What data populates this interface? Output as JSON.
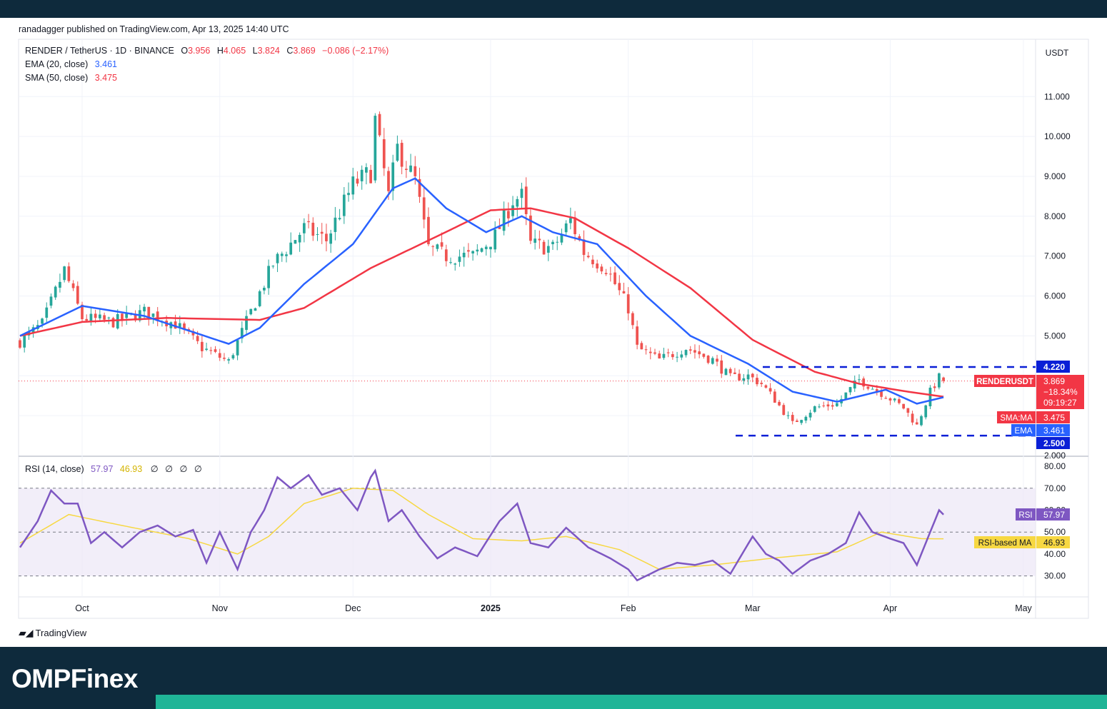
{
  "header": {
    "published": "ranadagger published on TradingView.com, Apr 13, 2025 14:40 UTC"
  },
  "footer": {
    "tradingview": "TradingView",
    "brand": "OMPFinex"
  },
  "legend": {
    "symbol": "RENDER / TetherUS · 1D · BINANCE",
    "o_label": "O",
    "o_val": "3.956",
    "h_label": "H",
    "h_val": "4.065",
    "l_label": "L",
    "l_val": "3.824",
    "c_label": "C",
    "c_val": "3.869",
    "change": "−0.086 (−2.17%)",
    "ema_label": "EMA (20, close)",
    "ema_val": "3.461",
    "sma_label": "SMA (50, close)",
    "sma_val": "3.475",
    "rsi_label": "RSI (14, close)",
    "rsi_val": "57.97",
    "rsi_ma_val": "46.93",
    "rsi_extra": [
      "∅",
      "∅",
      "∅",
      "∅"
    ]
  },
  "price_axis": {
    "currency": "USDT",
    "ticks": [
      "11.000",
      "10.000",
      "9.000",
      "8.000",
      "7.000",
      "6.000",
      "5.000",
      "2.000"
    ],
    "tick_values": [
      11,
      10,
      9,
      8,
      7,
      6,
      5,
      2
    ]
  },
  "rsi_axis": {
    "ticks": [
      "80.00",
      "70.00",
      "60.00",
      "50.00",
      "40.00",
      "30.00"
    ],
    "tick_values": [
      80,
      70,
      60,
      50,
      40,
      30
    ]
  },
  "time_axis": {
    "labels": [
      "Oct",
      "Nov",
      "Dec",
      "2025",
      "Feb",
      "Mar",
      "Apr",
      "May"
    ],
    "dates": [
      "2024-10-01",
      "2024-11-01",
      "2024-12-01",
      "2025-01-01",
      "2025-02-01",
      "2025-03-01",
      "2025-04-01",
      "2025-05-01"
    ]
  },
  "badges": {
    "resistance": "4.220",
    "support": "2.500",
    "symbol_tag": "RENDERUSDT",
    "last_price": "3.869",
    "last_change": "−18.34%",
    "countdown": "09:19:27",
    "sma_tag": "SMA:MA",
    "sma_val": "3.475",
    "ema_tag": "EMA",
    "ema_val": "3.461",
    "rsi_tag": "RSI",
    "rsi_val": "57.97",
    "rsi_ma_tag": "RSI-based MA",
    "rsi_ma_val": "46.93"
  },
  "colors": {
    "up": "#26a69a",
    "down": "#ef5350",
    "ema": "#2962ff",
    "sma": "#f23645",
    "rsi": "#7e57c2",
    "rsi_ma": "#f7d842",
    "level": "#0a1fd6",
    "band": "#ede7f6"
  },
  "chart_data": [
    {
      "type": "candlestick",
      "title": "RENDER / TetherUS · 1D · BINANCE",
      "ylabel": "USDT",
      "ylim": [
        2.0,
        11.9
      ],
      "x_range": [
        "2024-09-17",
        "2025-04-13"
      ],
      "anchors": [
        [
          "2024-09-17",
          4.85
        ],
        [
          "2024-09-22",
          5.3
        ],
        [
          "2024-09-27",
          6.65
        ],
        [
          "2024-10-01",
          5.45
        ],
        [
          "2024-10-08",
          5.35
        ],
        [
          "2024-10-15",
          5.6
        ],
        [
          "2024-10-22",
          5.3
        ],
        [
          "2024-10-28",
          4.7
        ],
        [
          "2024-11-03",
          4.35
        ],
        [
          "2024-11-08",
          5.6
        ],
        [
          "2024-11-13",
          6.8
        ],
        [
          "2024-11-20",
          7.7
        ],
        [
          "2024-11-25",
          7.4
        ],
        [
          "2024-12-01",
          8.8
        ],
        [
          "2024-12-05",
          9.1
        ],
        [
          "2024-12-06",
          10.4
        ],
        [
          "2024-12-09",
          8.5
        ],
        [
          "2024-12-11",
          9.7
        ],
        [
          "2024-12-15",
          8.9
        ],
        [
          "2024-12-18",
          7.2
        ],
        [
          "2024-12-22",
          7.0
        ],
        [
          "2024-12-28",
          7.0
        ],
        [
          "2025-01-02",
          7.5
        ],
        [
          "2025-01-06",
          8.4
        ],
        [
          "2025-01-08",
          8.5
        ],
        [
          "2025-01-10",
          7.3
        ],
        [
          "2025-01-15",
          7.2
        ],
        [
          "2025-01-19",
          7.9
        ],
        [
          "2025-01-22",
          7.1
        ],
        [
          "2025-01-27",
          6.7
        ],
        [
          "2025-02-01",
          5.7
        ],
        [
          "2025-02-03",
          4.7
        ],
        [
          "2025-02-08",
          4.4
        ],
        [
          "2025-02-14",
          4.7
        ],
        [
          "2025-02-20",
          4.4
        ],
        [
          "2025-02-24",
          3.95
        ],
        [
          "2025-02-28",
          4.0
        ],
        [
          "2025-03-03",
          3.8
        ],
        [
          "2025-03-06",
          3.4
        ],
        [
          "2025-03-10",
          2.8
        ],
        [
          "2025-03-15",
          3.2
        ],
        [
          "2025-03-20",
          3.3
        ],
        [
          "2025-03-25",
          3.9
        ],
        [
          "2025-03-31",
          3.5
        ],
        [
          "2025-04-04",
          3.2
        ],
        [
          "2025-04-07",
          2.75
        ],
        [
          "2025-04-10",
          3.6
        ],
        [
          "2025-04-12",
          3.956
        ],
        [
          "2025-04-13",
          3.869
        ]
      ],
      "series": [
        {
          "name": "EMA (20, close)",
          "last": 3.461,
          "anchors": [
            [
              "2024-09-17",
              5.0
            ],
            [
              "2024-10-01",
              5.75
            ],
            [
              "2024-10-15",
              5.5
            ],
            [
              "2024-11-03",
              4.8
            ],
            [
              "2024-11-10",
              5.2
            ],
            [
              "2024-11-20",
              6.3
            ],
            [
              "2024-12-01",
              7.3
            ],
            [
              "2024-12-10",
              8.7
            ],
            [
              "2024-12-15",
              8.95
            ],
            [
              "2024-12-22",
              8.2
            ],
            [
              "2024-12-31",
              7.6
            ],
            [
              "2025-01-08",
              8.0
            ],
            [
              "2025-01-15",
              7.6
            ],
            [
              "2025-01-25",
              7.3
            ],
            [
              "2025-02-05",
              6.0
            ],
            [
              "2025-02-15",
              5.0
            ],
            [
              "2025-02-28",
              4.3
            ],
            [
              "2025-03-10",
              3.6
            ],
            [
              "2025-03-20",
              3.35
            ],
            [
              "2025-03-31",
              3.65
            ],
            [
              "2025-04-07",
              3.3
            ],
            [
              "2025-04-13",
              3.461
            ]
          ]
        },
        {
          "name": "SMA (50, close)",
          "last": 3.475,
          "anchors": [
            [
              "2024-09-17",
              5.0
            ],
            [
              "2024-10-01",
              5.35
            ],
            [
              "2024-10-20",
              5.45
            ],
            [
              "2024-11-10",
              5.4
            ],
            [
              "2024-11-20",
              5.7
            ],
            [
              "2024-12-05",
              6.7
            ],
            [
              "2024-12-20",
              7.5
            ],
            [
              "2025-01-01",
              8.15
            ],
            [
              "2025-01-10",
              8.2
            ],
            [
              "2025-01-20",
              7.95
            ],
            [
              "2025-02-01",
              7.2
            ],
            [
              "2025-02-15",
              6.2
            ],
            [
              "2025-03-01",
              4.9
            ],
            [
              "2025-03-15",
              4.1
            ],
            [
              "2025-03-25",
              3.8
            ],
            [
              "2025-04-05",
              3.6
            ],
            [
              "2025-04-13",
              3.475
            ]
          ]
        }
      ],
      "levels": [
        4.22,
        2.5
      ],
      "last_price": 3.869
    },
    {
      "type": "line",
      "title": "RSI (14, close)",
      "ylim": [
        25,
        81
      ],
      "bands": {
        "upper": 70,
        "middle": 50,
        "lower": 30
      },
      "series": [
        {
          "name": "RSI",
          "last": 57.97,
          "anchors": [
            [
              "2024-09-17",
              43
            ],
            [
              "2024-09-21",
              55
            ],
            [
              "2024-09-24",
              69
            ],
            [
              "2024-09-27",
              63
            ],
            [
              "2024-09-30",
              63
            ],
            [
              "2024-10-03",
              45
            ],
            [
              "2024-10-06",
              50
            ],
            [
              "2024-10-10",
              43
            ],
            [
              "2024-10-14",
              50
            ],
            [
              "2024-10-18",
              53
            ],
            [
              "2024-10-22",
              48
            ],
            [
              "2024-10-26",
              51
            ],
            [
              "2024-10-29",
              36
            ],
            [
              "2024-11-01",
              50
            ],
            [
              "2024-11-05",
              33
            ],
            [
              "2024-11-08",
              50
            ],
            [
              "2024-11-11",
              60
            ],
            [
              "2024-11-14",
              75
            ],
            [
              "2024-11-17",
              70
            ],
            [
              "2024-11-21",
              76
            ],
            [
              "2024-11-24",
              67
            ],
            [
              "2024-11-28",
              70
            ],
            [
              "2024-12-02",
              60
            ],
            [
              "2024-12-05",
              75
            ],
            [
              "2024-12-06",
              78
            ],
            [
              "2024-12-09",
              55
            ],
            [
              "2024-12-12",
              60
            ],
            [
              "2024-12-16",
              48
            ],
            [
              "2024-12-20",
              38
            ],
            [
              "2024-12-24",
              43
            ],
            [
              "2024-12-29",
              39
            ],
            [
              "2025-01-03",
              55
            ],
            [
              "2025-01-07",
              63
            ],
            [
              "2025-01-10",
              45
            ],
            [
              "2025-01-14",
              43
            ],
            [
              "2025-01-18",
              52
            ],
            [
              "2025-01-23",
              43
            ],
            [
              "2025-01-28",
              38
            ],
            [
              "2025-02-01",
              33
            ],
            [
              "2025-02-03",
              28
            ],
            [
              "2025-02-08",
              33
            ],
            [
              "2025-02-12",
              36
            ],
            [
              "2025-02-16",
              35
            ],
            [
              "2025-02-20",
              37
            ],
            [
              "2025-02-24",
              31
            ],
            [
              "2025-03-01",
              48
            ],
            [
              "2025-03-04",
              40
            ],
            [
              "2025-03-07",
              37
            ],
            [
              "2025-03-10",
              31
            ],
            [
              "2025-03-14",
              37
            ],
            [
              "2025-03-18",
              40
            ],
            [
              "2025-03-22",
              45
            ],
            [
              "2025-03-25",
              59
            ],
            [
              "2025-03-28",
              50
            ],
            [
              "2025-04-01",
              47
            ],
            [
              "2025-04-04",
              45
            ],
            [
              "2025-04-07",
              35
            ],
            [
              "2025-04-10",
              50
            ],
            [
              "2025-04-12",
              60
            ],
            [
              "2025-04-13",
              57.97
            ]
          ]
        },
        {
          "name": "RSI-based MA",
          "last": 46.93,
          "anchors": [
            [
              "2024-09-17",
              45
            ],
            [
              "2024-09-28",
              58
            ],
            [
              "2024-10-10",
              53
            ],
            [
              "2024-10-25",
              47
            ],
            [
              "2024-11-05",
              40
            ],
            [
              "2024-11-12",
              48
            ],
            [
              "2024-11-20",
              63
            ],
            [
              "2024-12-01",
              70
            ],
            [
              "2024-12-10",
              69
            ],
            [
              "2024-12-18",
              58
            ],
            [
              "2024-12-28",
              47
            ],
            [
              "2025-01-08",
              46
            ],
            [
              "2025-01-18",
              48
            ],
            [
              "2025-01-30",
              42
            ],
            [
              "2025-02-08",
              33
            ],
            [
              "2025-02-20",
              35
            ],
            [
              "2025-03-05",
              38
            ],
            [
              "2025-03-20",
              41
            ],
            [
              "2025-03-30",
              50
            ],
            [
              "2025-04-08",
              47
            ],
            [
              "2025-04-13",
              46.93
            ]
          ]
        }
      ]
    }
  ]
}
